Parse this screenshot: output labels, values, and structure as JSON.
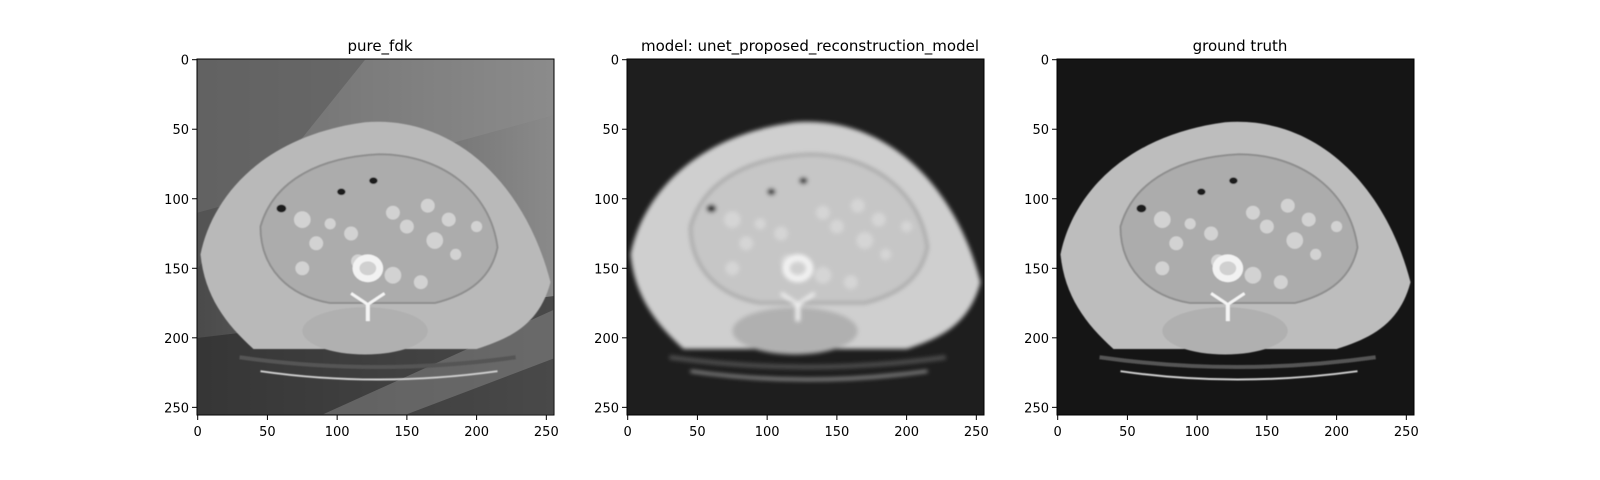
{
  "figure": {
    "panels": [
      {
        "id": "pure-fdk",
        "title": "pure_fdk",
        "variant": "fdk"
      },
      {
        "id": "model",
        "title": "model: unet_proposed_reconstruction_model",
        "variant": "model"
      },
      {
        "id": "ground-truth",
        "title": "ground truth",
        "variant": "gt"
      }
    ],
    "x_ticks": [
      "0",
      "50",
      "100",
      "150",
      "200",
      "250"
    ],
    "y_ticks": [
      "0",
      "50",
      "100",
      "150",
      "200",
      "250"
    ],
    "axis_range": [
      0,
      255
    ]
  }
}
